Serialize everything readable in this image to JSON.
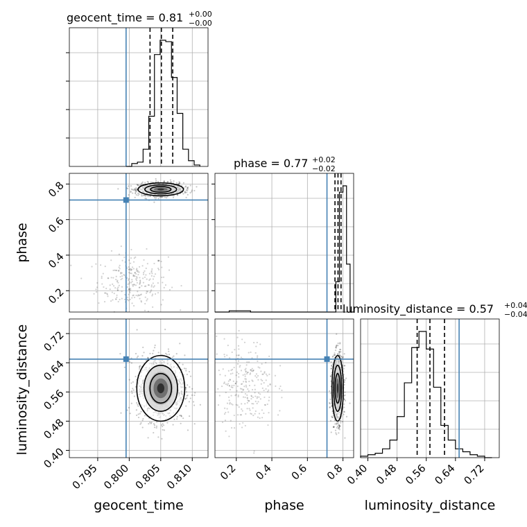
{
  "chart_data": {
    "type": "corner",
    "parameters": [
      "geocent_time",
      "phase",
      "luminosity_distance"
    ],
    "truth_color": "#4682b4",
    "titles": [
      {
        "name": "geocent_time",
        "value": "0.81",
        "plus": "+0.00",
        "minus": "−0.00"
      },
      {
        "name": "phase",
        "value": "0.77",
        "plus": "+0.02",
        "minus": "−0.02"
      },
      {
        "name": "luminosity_distance",
        "value": "0.57",
        "plus": "+0.04",
        "minus": "−0.04"
      }
    ],
    "axes": {
      "geocent_time": {
        "range": [
          0.7905,
          0.8125
        ],
        "ticks": [
          0.795,
          0.8,
          0.805,
          0.81
        ],
        "tick_labels": [
          "0.795",
          "0.800",
          "0.805",
          "0.810"
        ]
      },
      "phase": {
        "range": [
          0.08,
          0.86
        ],
        "ticks": [
          0.2,
          0.4,
          0.6,
          0.8
        ],
        "tick_labels": [
          "0.2",
          "0.4",
          "0.6",
          "0.8"
        ]
      },
      "luminosity_distance": {
        "range": [
          0.38,
          0.76
        ],
        "ticks": [
          0.4,
          0.48,
          0.56,
          0.64,
          0.72
        ],
        "tick_labels": [
          "0.40",
          "0.48",
          "0.56",
          "0.64",
          "0.72"
        ]
      }
    },
    "truths": {
      "geocent_time": 0.7995,
      "phase": 0.71,
      "luminosity_distance": 0.65
    },
    "quantiles": {
      "geocent_time": [
        0.8033,
        0.8051,
        0.8069
      ],
      "phase": [
        0.755,
        0.772,
        0.789
      ],
      "luminosity_distance": [
        0.535,
        0.57,
        0.61
      ]
    },
    "histograms": {
      "geocent_time": {
        "bin_edges": [
          0.7995,
          0.8004,
          0.8013,
          0.8022,
          0.8031,
          0.804,
          0.8049,
          0.8058,
          0.8067,
          0.8076,
          0.8085,
          0.8094,
          0.8103,
          0.8112
        ],
        "counts": [
          0,
          2,
          3,
          12,
          35,
          78,
          88,
          87,
          62,
          37,
          12,
          4,
          1
        ]
      },
      "phase": {
        "bin_edges": [
          0.08,
          0.1,
          0.12,
          0.14,
          0.16,
          0.18,
          0.2,
          0.22,
          0.24,
          0.26,
          0.28,
          0.3,
          0.32,
          0.34,
          0.36,
          0.38,
          0.4,
          0.42,
          0.44,
          0.46,
          0.48,
          0.5,
          0.52,
          0.54,
          0.56,
          0.58,
          0.6,
          0.62,
          0.64,
          0.66,
          0.68,
          0.7,
          0.72,
          0.74,
          0.76,
          0.78,
          0.8,
          0.82,
          0.84,
          0.86
        ],
        "counts": [
          0,
          0,
          0,
          0,
          1,
          1,
          1,
          1,
          1,
          1,
          0,
          0,
          0,
          0,
          0,
          0,
          0,
          0,
          0,
          0,
          0,
          0,
          0,
          0,
          0,
          0,
          0,
          0,
          0,
          0,
          0,
          0,
          0,
          0,
          24,
          95,
          100,
          38,
          0
        ]
      },
      "luminosity_distance": {
        "bin_edges": [
          0.38,
          0.4,
          0.42,
          0.44,
          0.46,
          0.48,
          0.5,
          0.52,
          0.54,
          0.56,
          0.58,
          0.6,
          0.62,
          0.64,
          0.66,
          0.68,
          0.7,
          0.72,
          0.74
        ],
        "counts": [
          1,
          2,
          3,
          6,
          12,
          28,
          51,
          75,
          86,
          74,
          48,
          22,
          12,
          6,
          4,
          2,
          1,
          0
        ]
      }
    },
    "scatter": {
      "phase_vs_geocent_time": {
        "core": {
          "x": 0.805,
          "y": 0.77,
          "sx": 0.0018,
          "sy": 0.018
        },
        "tail": {
          "x": 0.8005,
          "y": 0.25,
          "sx": 0.0028,
          "sy": 0.08
        }
      },
      "luminosity_distance_vs_geocent_time": {
        "core": {
          "x": 0.805,
          "y": 0.57,
          "sx": 0.0019,
          "sy": 0.045
        }
      },
      "luminosity_distance_vs_phase": {
        "core": {
          "x": 0.77,
          "y": 0.57,
          "sx": 0.016,
          "sy": 0.045
        },
        "tail": {
          "x": 0.25,
          "y": 0.58,
          "sx": 0.08,
          "sy": 0.06
        }
      }
    }
  }
}
